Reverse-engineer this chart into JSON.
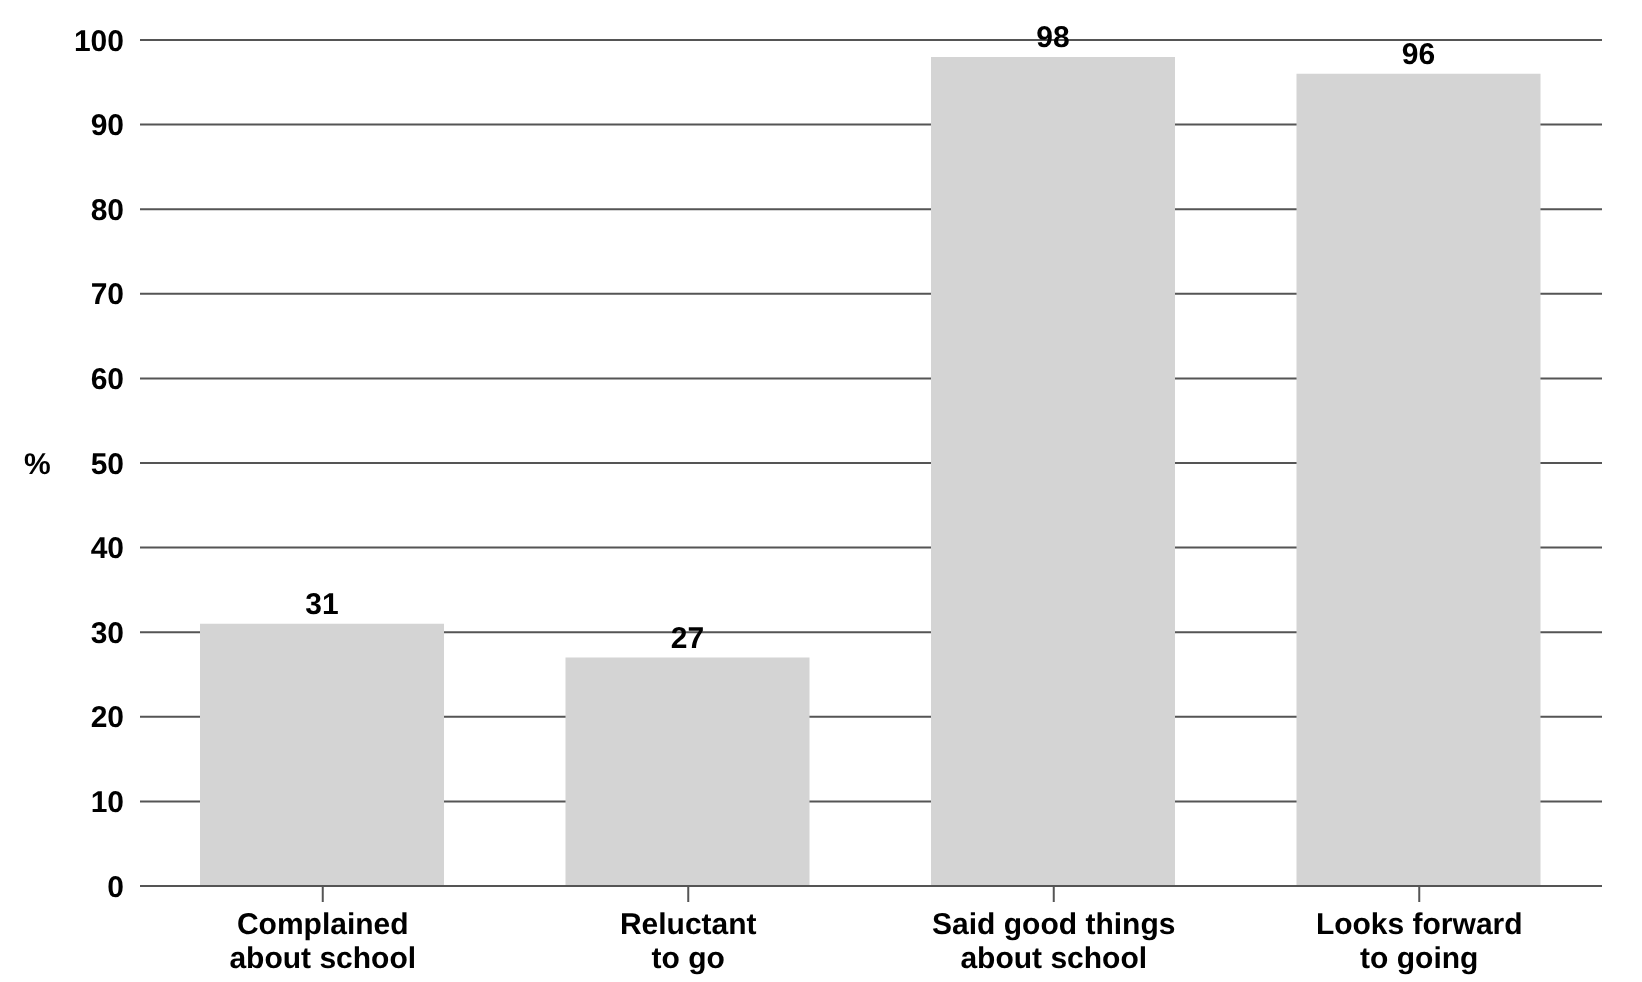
{
  "chart_data": {
    "type": "bar",
    "ylabel": "%",
    "categories": [
      "Complained about school",
      "Reluctant to go",
      "Said good things about school",
      "Looks forward to going"
    ],
    "values": [
      31,
      27,
      98,
      96
    ],
    "color": "#d4d4d4",
    "ylim": [
      0,
      100
    ],
    "yticks": [
      0,
      10,
      20,
      30,
      40,
      50,
      60,
      70,
      80,
      90,
      100
    ],
    "grid": "y",
    "data_labels": true
  }
}
